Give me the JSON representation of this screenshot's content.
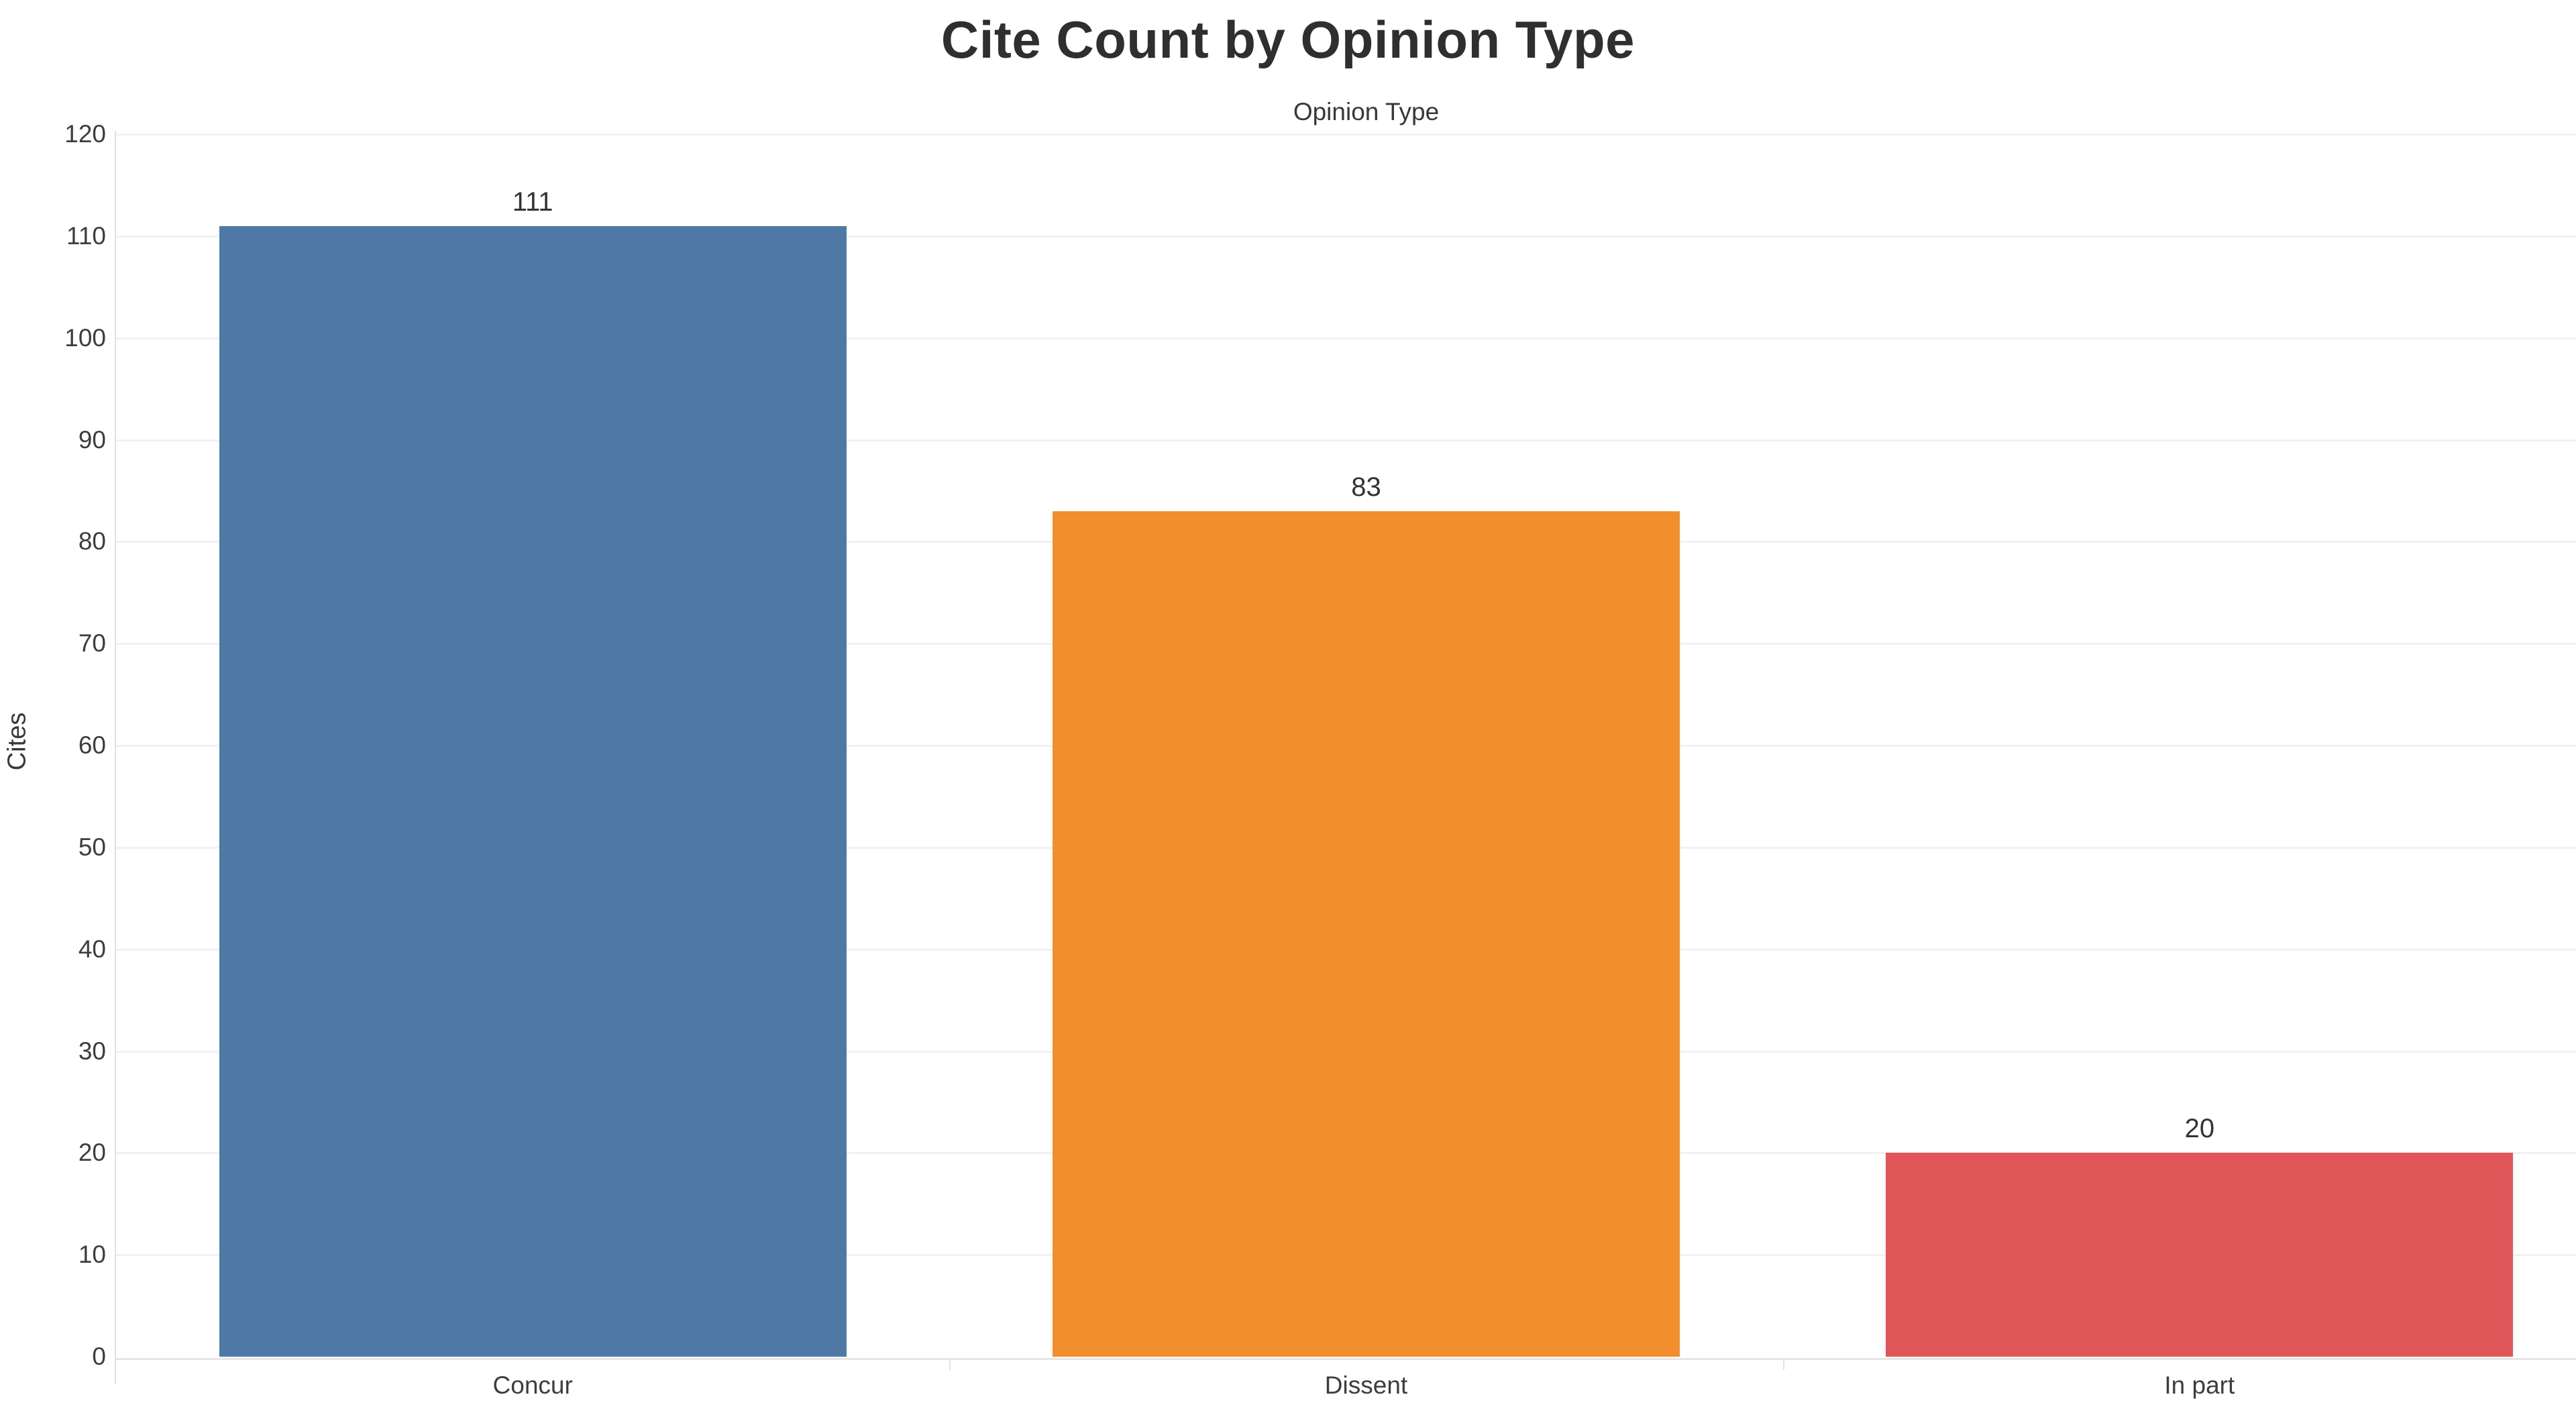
{
  "chart_data": {
    "type": "bar",
    "title": "Cite Count by Opinion Type",
    "axis_field_label": "Opinion Type",
    "ylabel": "Cites",
    "xlabel": "",
    "categories": [
      "Concur",
      "Dissent",
      "In part"
    ],
    "values": [
      111,
      83,
      20
    ],
    "value_labels": [
      "111",
      "83",
      "20"
    ],
    "bar_colors": [
      "#4e79a7",
      "#f28e2b",
      "#e15759"
    ],
    "ylim": [
      0,
      120
    ],
    "yticks": [
      0,
      10,
      20,
      30,
      40,
      50,
      60,
      70,
      80,
      90,
      100,
      110,
      120
    ],
    "grid": true,
    "legend": false,
    "background": "#ffffff",
    "grid_color": "#f1f1f1",
    "axis_line_color": "#e1e1e1",
    "title_color": "#2f2f2f",
    "label_color": "#3d3d3d"
  }
}
